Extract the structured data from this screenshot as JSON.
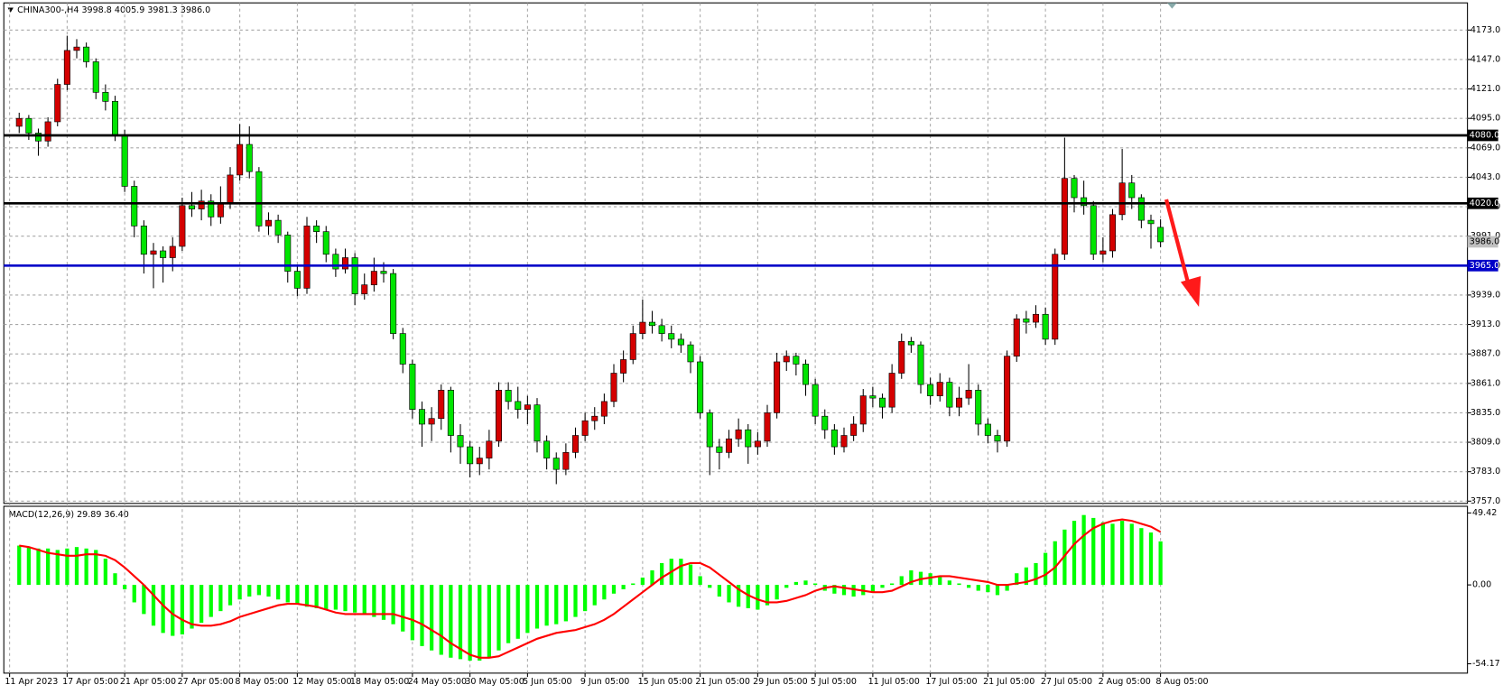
{
  "chart_data": [
    {
      "type": "candlestick",
      "title": "CHINA300-,H4  3998.8 4005.9 3981.3 3986.0",
      "open": [
        4088,
        4095,
        4082,
        4075,
        4092,
        4125,
        4155,
        4158,
        4145,
        4118,
        4110,
        4080,
        4035,
        4000,
        3975,
        3978,
        3972,
        3982,
        4018,
        4015,
        4022,
        4008,
        4020,
        4045,
        4072,
        4048,
        4000,
        4005,
        3992,
        3960,
        3945,
        4000,
        3995,
        3975,
        3962,
        3972,
        3940,
        3948,
        3960,
        3958,
        3905,
        3878,
        3838,
        3825,
        3830,
        3855,
        3815,
        3805,
        3790,
        3795,
        3810,
        3855,
        3845,
        3838,
        3842,
        3810,
        3795,
        3785,
        3800,
        3815,
        3828,
        3832,
        3845,
        3870,
        3882,
        3905,
        3915,
        3912,
        3905,
        3900,
        3895,
        3880,
        3835,
        3805,
        3800,
        3812,
        3820,
        3805,
        3810,
        3835,
        3880,
        3885,
        3878,
        3860,
        3832,
        3820,
        3805,
        3815,
        3825,
        3850,
        3848,
        3840,
        3870,
        3898,
        3895,
        3860,
        3850,
        3862,
        3840,
        3848,
        3855,
        3825,
        3815,
        3810,
        3885,
        3918,
        3915,
        3922,
        3900,
        3975,
        4042,
        4025,
        4018,
        3975,
        3978,
        4010,
        4038,
        4025,
        4005,
        3998.8
      ],
      "high": [
        4100,
        4098,
        4086,
        4096,
        4130,
        4168,
        4165,
        4162,
        4148,
        4125,
        4115,
        4085,
        4040,
        4005,
        3985,
        3982,
        3990,
        4025,
        4030,
        4032,
        4028,
        4035,
        4052,
        4090,
        4088,
        4052,
        4012,
        4010,
        3995,
        3965,
        4008,
        4005,
        4000,
        3980,
        3980,
        3976,
        3958,
        3972,
        3968,
        3962,
        3910,
        3882,
        3845,
        3840,
        3860,
        3858,
        3825,
        3810,
        3805,
        3820,
        3862,
        3862,
        3858,
        3850,
        3848,
        3815,
        3800,
        3808,
        3822,
        3835,
        3840,
        3852,
        3878,
        3890,
        3912,
        3935,
        3925,
        3918,
        3912,
        3905,
        3898,
        3885,
        3838,
        3812,
        3820,
        3830,
        3825,
        3818,
        3842,
        3888,
        3890,
        3888,
        3882,
        3865,
        3838,
        3825,
        3822,
        3832,
        3856,
        3858,
        3852,
        3878,
        3905,
        3902,
        3898,
        3866,
        3870,
        3866,
        3858,
        3878,
        3860,
        3830,
        3820,
        3890,
        3922,
        3925,
        3930,
        3928,
        3980,
        4078,
        4045,
        4040,
        4022,
        3990,
        4015,
        4068,
        4045,
        4028,
        4010,
        4005.9
      ],
      "low": [
        4082,
        4076,
        4062,
        4070,
        4088,
        4120,
        4148,
        4140,
        4112,
        4102,
        4075,
        4030,
        3990,
        3958,
        3945,
        3950,
        3960,
        3978,
        4008,
        4005,
        4000,
        4002,
        4015,
        4040,
        4042,
        3995,
        3992,
        3985,
        3950,
        3938,
        3940,
        3985,
        3968,
        3955,
        3958,
        3930,
        3935,
        3942,
        3950,
        3900,
        3870,
        3830,
        3805,
        3810,
        3820,
        3800,
        3790,
        3778,
        3780,
        3785,
        3805,
        3838,
        3830,
        3825,
        3800,
        3785,
        3772,
        3780,
        3795,
        3810,
        3820,
        3825,
        3840,
        3862,
        3878,
        3900,
        3905,
        3898,
        3892,
        3888,
        3870,
        3830,
        3780,
        3785,
        3795,
        3805,
        3790,
        3798,
        3805,
        3830,
        3872,
        3868,
        3850,
        3825,
        3812,
        3798,
        3800,
        3810,
        3818,
        3840,
        3830,
        3835,
        3865,
        3888,
        3852,
        3842,
        3845,
        3832,
        3832,
        3842,
        3815,
        3808,
        3800,
        3805,
        3880,
        3905,
        3910,
        3895,
        3895,
        3970,
        4012,
        4010,
        3970,
        3968,
        3972,
        4005,
        4015,
        3998,
        3980,
        3981.3
      ],
      "close": [
        4095,
        4082,
        4075,
        4092,
        4125,
        4155,
        4158,
        4145,
        4118,
        4110,
        4080,
        4035,
        4000,
        3975,
        3978,
        3972,
        3982,
        4018,
        4015,
        4022,
        4008,
        4020,
        4045,
        4072,
        4048,
        4000,
        4005,
        3992,
        3960,
        3945,
        4000,
        3995,
        3975,
        3962,
        3972,
        3940,
        3948,
        3960,
        3958,
        3905,
        3878,
        3838,
        3825,
        3830,
        3855,
        3815,
        3805,
        3790,
        3795,
        3810,
        3855,
        3845,
        3838,
        3842,
        3810,
        3795,
        3785,
        3800,
        3815,
        3828,
        3832,
        3845,
        3870,
        3882,
        3905,
        3915,
        3912,
        3905,
        3900,
        3895,
        3880,
        3835,
        3805,
        3800,
        3812,
        3820,
        3805,
        3810,
        3835,
        3880,
        3885,
        3878,
        3860,
        3832,
        3820,
        3805,
        3815,
        3825,
        3850,
        3848,
        3840,
        3870,
        3898,
        3895,
        3860,
        3850,
        3862,
        3840,
        3848,
        3855,
        3825,
        3815,
        3810,
        3885,
        3918,
        3915,
        3922,
        3900,
        3975,
        4042,
        4025,
        4018,
        3975,
        3978,
        4010,
        4038,
        4025,
        4005,
        4002,
        3986.0
      ],
      "up_color": "#d40000",
      "down_color": "#00e400",
      "grid": true,
      "ylim": [
        3755,
        4197
      ],
      "yticks": [
        {
          "value": 3757,
          "label": "3757.0"
        },
        {
          "value": 3783,
          "label": "3783.0"
        },
        {
          "value": 3809,
          "label": "3809.0"
        },
        {
          "value": 3835,
          "label": "3835.0"
        },
        {
          "value": 3861,
          "label": "3861.0"
        },
        {
          "value": 3887,
          "label": "3887.0"
        },
        {
          "value": 3913,
          "label": "3913.0"
        },
        {
          "value": 3939,
          "label": "3939.0"
        },
        {
          "value": 3965,
          "label": "3965.0"
        },
        {
          "value": 3991,
          "label": "3991.0"
        },
        {
          "value": 4017,
          "label": "4017.0"
        },
        {
          "value": 4043,
          "label": "4043.0"
        },
        {
          "value": 4069,
          "label": "4069.0"
        },
        {
          "value": 4095,
          "label": "4095.0"
        },
        {
          "value": 4121,
          "label": "4121.0"
        },
        {
          "value": 4147,
          "label": "4147.0"
        },
        {
          "value": 4173,
          "label": "4173.0"
        }
      ],
      "xticks": [
        {
          "value": -1,
          "label": "11 Apr 2023"
        },
        {
          "value": 5,
          "label": "17 Apr 05:00"
        },
        {
          "value": 11,
          "label": "21 Apr 05:00"
        },
        {
          "value": 17,
          "label": "27 Apr 05:00"
        },
        {
          "value": 23,
          "label": "8 May 05:00"
        },
        {
          "value": 29,
          "label": "12 May 05:00"
        },
        {
          "value": 35,
          "label": "18 May 05:00"
        },
        {
          "value": 41,
          "label": "24 May 05:00"
        },
        {
          "value": 47,
          "label": "30 May 05:00"
        },
        {
          "value": 53,
          "label": "5 Jun 05:00"
        },
        {
          "value": 59,
          "label": "9 Jun 05:00"
        },
        {
          "value": 65,
          "label": "15 Jun 05:00"
        },
        {
          "value": 71,
          "label": "21 Jun 05:00"
        },
        {
          "value": 77,
          "label": "29 Jun 05:00"
        },
        {
          "value": 83,
          "label": "5 Jul 05:00"
        },
        {
          "value": 89,
          "label": "11 Jul 05:00"
        },
        {
          "value": 95,
          "label": "17 Jul 05:00"
        },
        {
          "value": 101,
          "label": "21 Jul 05:00"
        },
        {
          "value": 107,
          "label": "27 Jul 05:00"
        },
        {
          "value": 113,
          "label": "2 Aug 05:00"
        },
        {
          "value": 119,
          "label": "8 Aug 05:00"
        }
      ],
      "hlines": [
        {
          "value": 4080,
          "label": "4080.0",
          "color": "#000000"
        },
        {
          "value": 4020,
          "label": "4020.0",
          "color": "#000000"
        },
        {
          "value": 3965,
          "label": "3965.0",
          "color": "#0000c8"
        }
      ],
      "price_label": {
        "value": 3986,
        "label": "3986.0"
      }
    },
    {
      "type": "macd",
      "title": "MACD(12,26,9) 29.89 36.40",
      "ylim": [
        -60.6,
        54.0
      ],
      "yticks": [
        49.42,
        {
          "value": 0,
          "label": "0.00"
        },
        -54.17
      ],
      "series": [
        {
          "type": "histogram",
          "color": "#00ff00",
          "values": [
            27,
            26,
            25,
            25,
            24,
            25,
            26,
            25,
            24,
            18,
            8,
            -3,
            -12,
            -20,
            -28,
            -33,
            -35,
            -34,
            -30,
            -26,
            -22,
            -18,
            -14,
            -10,
            -8,
            -7,
            -8,
            -10,
            -12,
            -13,
            -15,
            -16,
            -17,
            -17,
            -18,
            -19,
            -20,
            -22,
            -24,
            -27,
            -32,
            -38,
            -42,
            -45,
            -48,
            -50,
            -51,
            -52,
            -52,
            -50,
            -45,
            -40,
            -37,
            -33,
            -30,
            -28,
            -27,
            -25,
            -22,
            -18,
            -14,
            -10,
            -6,
            -3,
            1,
            5,
            10,
            15,
            18,
            18,
            14,
            6,
            -2,
            -8,
            -12,
            -15,
            -16,
            -17,
            -14,
            -10,
            -2,
            2,
            3,
            1,
            -4,
            -6,
            -7,
            -8,
            -7,
            -5,
            -2,
            1,
            6,
            10,
            9,
            8,
            6,
            3,
            1,
            -2,
            -4,
            -5,
            -7,
            -4,
            8,
            12,
            15,
            22,
            30,
            38,
            44,
            48,
            46,
            43,
            42,
            44,
            42,
            39,
            36,
            29.89
          ]
        },
        {
          "type": "line",
          "color": "#ff0000",
          "values": [
            27,
            26,
            24,
            22,
            21,
            20,
            20,
            21,
            21,
            20,
            17,
            12,
            6,
            0,
            -7,
            -14,
            -20,
            -24,
            -27,
            -28,
            -28,
            -27,
            -25,
            -22,
            -20,
            -18,
            -16,
            -14,
            -13,
            -13,
            -14,
            -15,
            -17,
            -19,
            -20,
            -20,
            -20,
            -20,
            -20,
            -20,
            -22,
            -24,
            -27,
            -31,
            -35,
            -40,
            -44,
            -48,
            -50,
            -50,
            -49,
            -46,
            -43,
            -40,
            -37,
            -35,
            -33,
            -32,
            -31,
            -29,
            -27,
            -24,
            -20,
            -15,
            -10,
            -5,
            0,
            5,
            9,
            13,
            15,
            15,
            12,
            7,
            2,
            -3,
            -7,
            -10,
            -12,
            -12,
            -11,
            -9,
            -7,
            -4,
            -2,
            -1,
            -2,
            -3,
            -4,
            -5,
            -5,
            -4,
            -1,
            2,
            4,
            5,
            6,
            6,
            5,
            4,
            3,
            2,
            0,
            0,
            1,
            2,
            4,
            7,
            12,
            20,
            28,
            34,
            39,
            42,
            44,
            45,
            44,
            42,
            40,
            36.4
          ]
        }
      ]
    }
  ]
}
